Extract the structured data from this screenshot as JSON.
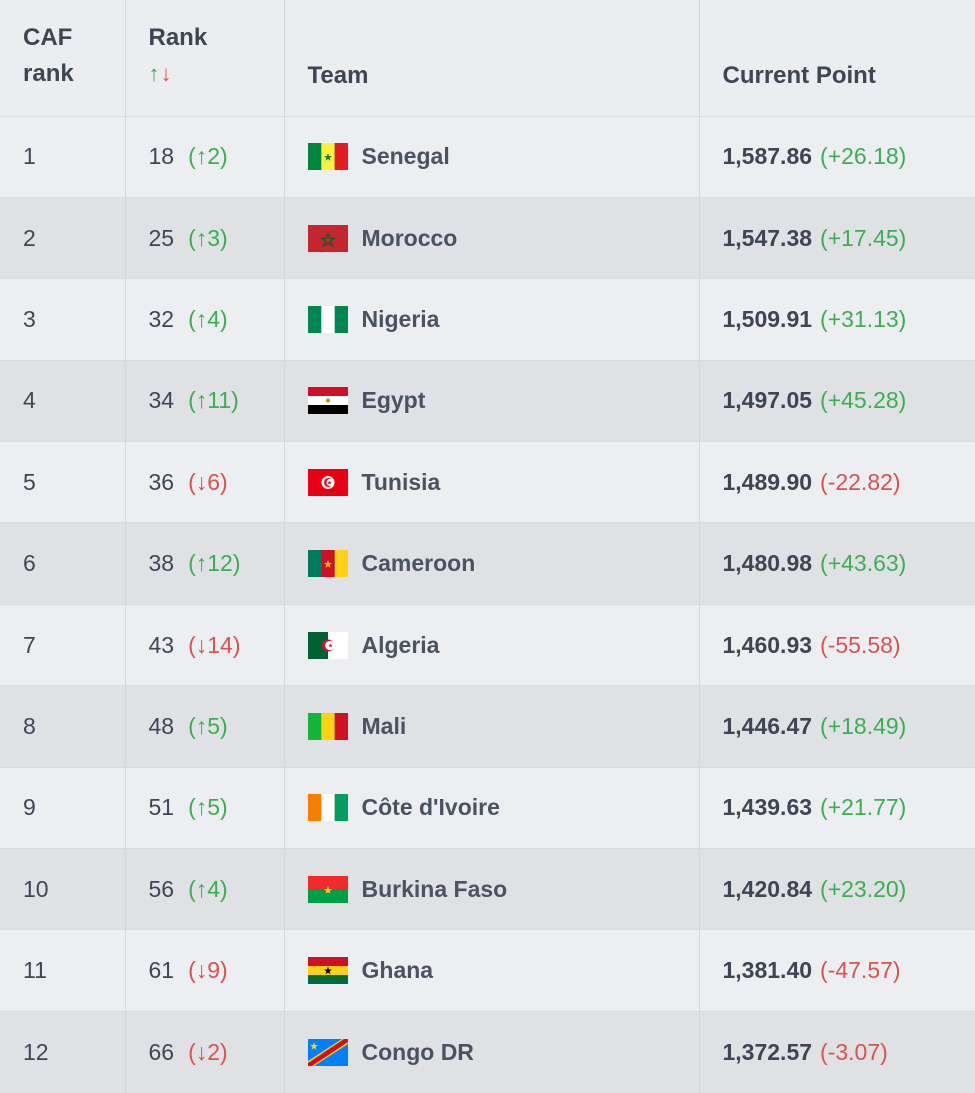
{
  "header": {
    "caf_rank_line1": "CAF",
    "caf_rank_line2": "rank",
    "rank_label": "Rank",
    "rank_arrow_up": "↑",
    "rank_arrow_down": "↓",
    "team_label": "Team",
    "points_label": "Current Point"
  },
  "colors": {
    "up": "#3cae50",
    "down": "#d9534f"
  },
  "rows": [
    {
      "caf": "1",
      "rank": "18",
      "change": "(↑2)",
      "dir": "up",
      "team": "Senegal",
      "flag": "senegal-flag-icon",
      "points": "1,587.86",
      "delta": "(+26.18)",
      "delta_dir": "up"
    },
    {
      "caf": "2",
      "rank": "25",
      "change": "(↑3)",
      "dir": "up",
      "team": "Morocco",
      "flag": "morocco-flag-icon",
      "points": "1,547.38",
      "delta": "(+17.45)",
      "delta_dir": "up"
    },
    {
      "caf": "3",
      "rank": "32",
      "change": "(↑4)",
      "dir": "up",
      "team": "Nigeria",
      "flag": "nigeria-flag-icon",
      "points": "1,509.91",
      "delta": "(+31.13)",
      "delta_dir": "up"
    },
    {
      "caf": "4",
      "rank": "34",
      "change": "(↑11)",
      "dir": "up",
      "team": "Egypt",
      "flag": "egypt-flag-icon",
      "points": "1,497.05",
      "delta": "(+45.28)",
      "delta_dir": "up"
    },
    {
      "caf": "5",
      "rank": "36",
      "change": "(↓6)",
      "dir": "down",
      "team": "Tunisia",
      "flag": "tunisia-flag-icon",
      "points": "1,489.90",
      "delta": "(-22.82)",
      "delta_dir": "down"
    },
    {
      "caf": "6",
      "rank": "38",
      "change": "(↑12)",
      "dir": "up",
      "team": "Cameroon",
      "flag": "cameroon-flag-icon",
      "points": "1,480.98",
      "delta": "(+43.63)",
      "delta_dir": "up"
    },
    {
      "caf": "7",
      "rank": "43",
      "change": "(↓14)",
      "dir": "down",
      "team": "Algeria",
      "flag": "algeria-flag-icon",
      "points": "1,460.93",
      "delta": "(-55.58)",
      "delta_dir": "down"
    },
    {
      "caf": "8",
      "rank": "48",
      "change": "(↑5)",
      "dir": "up",
      "team": "Mali",
      "flag": "mali-flag-icon",
      "points": "1,446.47",
      "delta": "(+18.49)",
      "delta_dir": "up"
    },
    {
      "caf": "9",
      "rank": "51",
      "change": "(↑5)",
      "dir": "up",
      "team": "Côte d'Ivoire",
      "flag": "cote-divoire-flag-icon",
      "points": "1,439.63",
      "delta": "(+21.77)",
      "delta_dir": "up"
    },
    {
      "caf": "10",
      "rank": "56",
      "change": "(↑4)",
      "dir": "up",
      "team": "Burkina Faso",
      "flag": "burkina-faso-flag-icon",
      "points": "1,420.84",
      "delta": "(+23.20)",
      "delta_dir": "up"
    },
    {
      "caf": "11",
      "rank": "61",
      "change": "(↓9)",
      "dir": "down",
      "team": "Ghana",
      "flag": "ghana-flag-icon",
      "points": "1,381.40",
      "delta": "(-47.57)",
      "delta_dir": "down"
    },
    {
      "caf": "12",
      "rank": "66",
      "change": "(↓2)",
      "dir": "down",
      "team": "Congo DR",
      "flag": "congo-dr-flag-icon",
      "points": "1,372.57",
      "delta": "(-3.07)",
      "delta_dir": "down"
    }
  ]
}
